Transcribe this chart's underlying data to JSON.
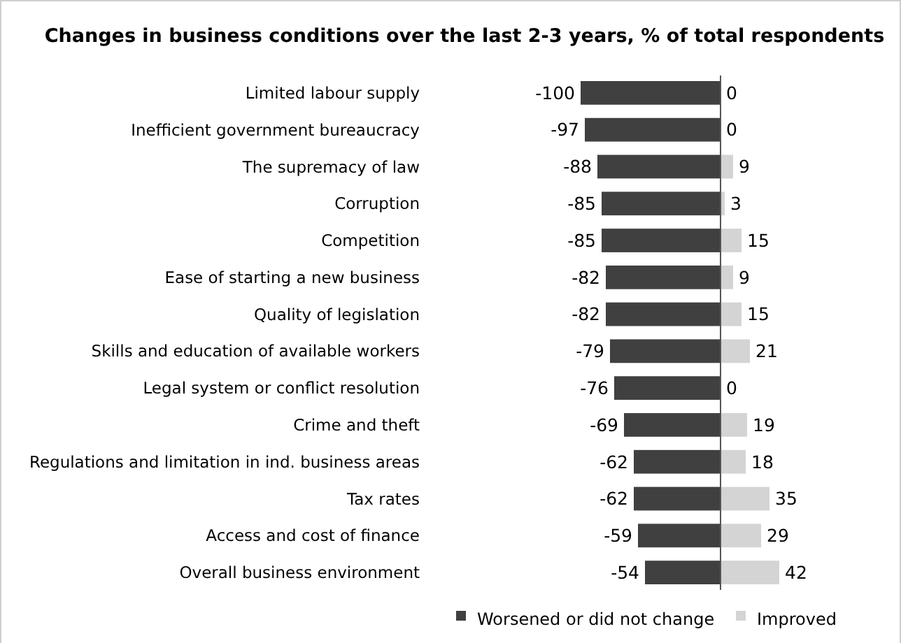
{
  "chart_data": {
    "type": "bar",
    "orientation": "horizontal",
    "stacked": true,
    "title": "Changes in business conditions over the last 2-3 years, % of total respondents",
    "categories": [
      "Limited labour supply",
      "Inefficient government bureaucracy",
      "The supremacy of law",
      "Corruption",
      "Competition",
      "Ease of starting a new business",
      "Quality of legislation",
      "Skills and education of available workers",
      "Legal system or conflict resolution",
      "Crime and theft",
      "Regulations and limitation in ind. business areas",
      "Tax rates",
      "Access and cost of finance",
      "Overall business environment"
    ],
    "series": [
      {
        "name": "Worsened or did not change",
        "color": "#404040",
        "values": [
          -100,
          -97,
          -88,
          -85,
          -85,
          -82,
          -82,
          -79,
          -76,
          -69,
          -62,
          -62,
          -59,
          -54
        ]
      },
      {
        "name": "Improved",
        "color": "#d4d4d4",
        "values": [
          0,
          0,
          9,
          3,
          15,
          9,
          15,
          21,
          0,
          19,
          18,
          35,
          29,
          42
        ]
      }
    ],
    "data_labels": true,
    "legend": "bottom"
  }
}
